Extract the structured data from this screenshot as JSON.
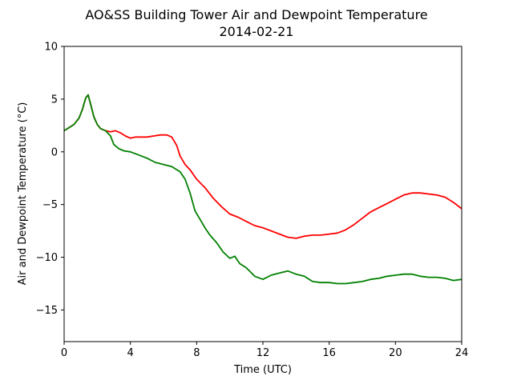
{
  "chart_data": {
    "type": "line",
    "title": "AO&SS Building Tower Air and Dewpoint Temperature",
    "subtitle": "2014-02-21",
    "xlabel": "Time (UTC)",
    "ylabel": "Air and Dewpoint Temperature (°C)",
    "xlim": [
      0,
      24
    ],
    "ylim": [
      -18,
      10
    ],
    "xticks": [
      0,
      4,
      8,
      12,
      16,
      20,
      24
    ],
    "yticks": [
      -15,
      -10,
      -5,
      0,
      5,
      10
    ],
    "grid": false,
    "series": [
      {
        "color": "#ff0000",
        "x": [
          0,
          0.3,
          0.6,
          0.9,
          1.1,
          1.3,
          1.45,
          1.6,
          1.8,
          2.0,
          2.2,
          2.5,
          2.8,
          3.1,
          3.4,
          3.7,
          4.0,
          4.3,
          4.6,
          5.0,
          5.4,
          5.8,
          6.2,
          6.5,
          6.8,
          7.0,
          7.3,
          7.6,
          8.0,
          8.5,
          9.0,
          9.5,
          10.0,
          10.5,
          11.0,
          11.5,
          12.0,
          12.5,
          13.0,
          13.5,
          14.0,
          14.5,
          15.0,
          15.5,
          16.0,
          16.5,
          17.0,
          17.5,
          18.0,
          18.5,
          19.0,
          19.5,
          20.0,
          20.5,
          21.0,
          21.5,
          22.0,
          22.5,
          23.0,
          23.5,
          24.0
        ],
        "y": [
          2.0,
          2.3,
          2.6,
          3.2,
          4.0,
          5.1,
          5.4,
          4.5,
          3.3,
          2.6,
          2.2,
          2.0,
          1.9,
          2.0,
          1.8,
          1.5,
          1.3,
          1.4,
          1.4,
          1.4,
          1.5,
          1.6,
          1.6,
          1.4,
          0.6,
          -0.4,
          -1.2,
          -1.7,
          -2.6,
          -3.4,
          -4.4,
          -5.2,
          -5.9,
          -6.2,
          -6.6,
          -7.0,
          -7.2,
          -7.5,
          -7.8,
          -8.1,
          -8.2,
          -8.0,
          -7.9,
          -7.9,
          -7.8,
          -7.7,
          -7.4,
          -6.9,
          -6.3,
          -5.7,
          -5.3,
          -4.9,
          -4.5,
          -4.1,
          -3.9,
          -3.9,
          -4.0,
          -4.1,
          -4.3,
          -4.8,
          -5.4
        ]
      },
      {
        "color": "#008000",
        "x": [
          0,
          0.3,
          0.6,
          0.9,
          1.1,
          1.3,
          1.45,
          1.6,
          1.8,
          2.0,
          2.2,
          2.5,
          2.8,
          3.0,
          3.3,
          3.6,
          4.0,
          4.5,
          5.0,
          5.5,
          6.0,
          6.5,
          7.0,
          7.3,
          7.6,
          7.9,
          8.2,
          8.5,
          8.8,
          9.2,
          9.6,
          10.0,
          10.3,
          10.6,
          11.0,
          11.5,
          12.0,
          12.5,
          13.0,
          13.5,
          14.0,
          14.5,
          15.0,
          15.5,
          16.0,
          16.5,
          17.0,
          17.5,
          18.0,
          18.5,
          19.0,
          19.5,
          20.0,
          20.5,
          21.0,
          21.5,
          22.0,
          22.5,
          23.0,
          23.5,
          24.0
        ],
        "y": [
          2.0,
          2.3,
          2.6,
          3.2,
          4.0,
          5.1,
          5.4,
          4.5,
          3.3,
          2.6,
          2.2,
          2.0,
          1.5,
          0.7,
          0.3,
          0.1,
          0.0,
          -0.3,
          -0.6,
          -1.0,
          -1.2,
          -1.4,
          -1.9,
          -2.6,
          -3.9,
          -5.6,
          -6.4,
          -7.2,
          -7.9,
          -8.6,
          -9.5,
          -10.1,
          -9.9,
          -10.6,
          -11.0,
          -11.8,
          -12.1,
          -11.7,
          -11.5,
          -11.3,
          -11.6,
          -11.8,
          -12.3,
          -12.4,
          -12.4,
          -12.5,
          -12.5,
          -12.4,
          -12.3,
          -12.1,
          -12.0,
          -11.8,
          -11.7,
          -11.6,
          -11.6,
          -11.8,
          -11.9,
          -11.9,
          -12.0,
          -12.2,
          -12.1
        ]
      }
    ]
  }
}
